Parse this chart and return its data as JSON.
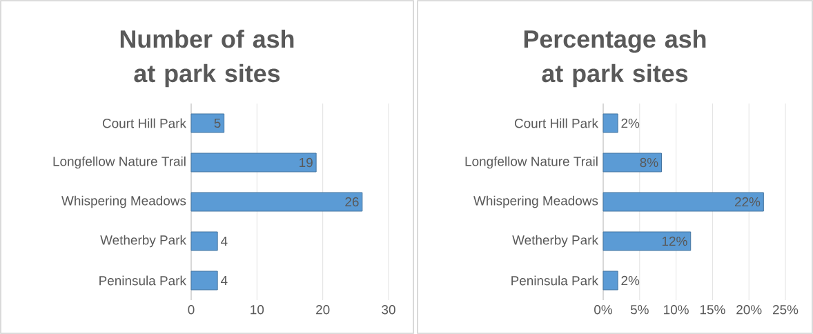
{
  "chart_data": [
    {
      "type": "bar",
      "orientation": "horizontal",
      "title": "Number of ash at park sites",
      "categories": [
        "Court Hill Park",
        "Longfellow Nature Trail",
        "Whispering Meadows",
        "Wetherby Park",
        "Peninsula Park"
      ],
      "values": [
        5,
        19,
        26,
        4,
        4
      ],
      "value_labels": [
        "5",
        "19",
        "26",
        "4",
        "4"
      ],
      "color": "#5b9bd5",
      "xlim": [
        0,
        30
      ],
      "xticks": [
        0,
        10,
        20,
        30
      ],
      "grid": "x"
    },
    {
      "type": "bar",
      "orientation": "horizontal",
      "title": "Percentage ash at park sites",
      "categories": [
        "Court Hill Park",
        "Longfellow Nature Trail",
        "Whispering Meadows",
        "Wetherby Park",
        "Peninsula Park"
      ],
      "values": [
        2,
        8,
        22,
        12,
        2
      ],
      "value_labels": [
        "2%",
        "8%",
        "22%",
        "12%",
        "2%"
      ],
      "color": "#5b9bd5",
      "xlim": [
        0,
        25
      ],
      "xticks": [
        {
          "value": 0,
          "label": "0%"
        },
        {
          "value": 5,
          "label": "5%"
        },
        {
          "value": 10,
          "label": "10%"
        },
        {
          "value": 15,
          "label": "15%"
        },
        {
          "value": 20,
          "label": "20%"
        },
        {
          "value": 25,
          "label": "25%"
        }
      ],
      "grid": "x"
    }
  ]
}
